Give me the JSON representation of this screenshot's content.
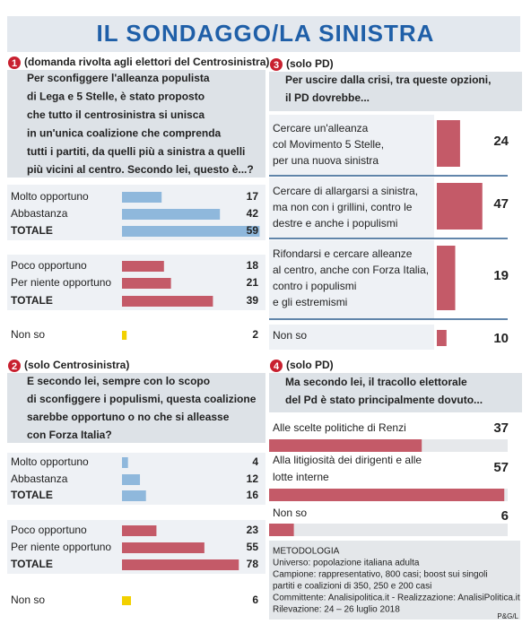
{
  "title": "IL SONDAGGO/LA SINISTRA",
  "chart_data": [
    {
      "type": "bar",
      "number": "1",
      "subtitle": "(domanda rivolta agli elettori del Centrosinistra)",
      "question": [
        "Per sconfiggere l'alleanza populista",
        "di Lega e 5 Stelle, è stato proposto",
        "che tutto il centrosinistra si unisca",
        "in un'unica coalizione che comprenda",
        "tutti i partiti, da quelli più a sinistra a quelli",
        "più vicini al centro. Secondo lei, questo è...?"
      ],
      "groups": [
        {
          "color": "#8fb8dc",
          "categories": [
            "Molto opportuno",
            "Abbastanza",
            "TOTALE"
          ],
          "values": [
            17,
            42,
            59
          ]
        },
        {
          "color": "#c45a68",
          "categories": [
            "Poco opportuno",
            "Per niente opportuno",
            "TOTALE"
          ],
          "values": [
            18,
            21,
            39
          ]
        },
        {
          "color": "#f2d000",
          "categories": [
            "Non so"
          ],
          "values": [
            2
          ]
        }
      ]
    },
    {
      "type": "bar",
      "number": "2",
      "subtitle": "(solo Centrosinistra)",
      "question": [
        "E secondo lei, sempre con lo scopo",
        "di sconfiggere i populismi, questa coalizione",
        "sarebbe opportuno o no che si alleasse",
        "con Forza Italia?"
      ],
      "groups": [
        {
          "color": "#8fb8dc",
          "categories": [
            "Molto opportuno",
            "Abbastanza",
            "TOTALE"
          ],
          "values": [
            4,
            12,
            16
          ]
        },
        {
          "color": "#c45a68",
          "categories": [
            "Poco opportuno",
            "Per niente opportuno",
            "TOTALE"
          ],
          "values": [
            23,
            55,
            78
          ]
        },
        {
          "color": "#f2d000",
          "categories": [
            "Non so"
          ],
          "values": [
            6
          ]
        }
      ]
    },
    {
      "type": "bar",
      "number": "3",
      "subtitle": "(solo PD)",
      "question": [
        "Per uscire dalla crisi, tra queste opzioni,",
        "il PD dovrebbe..."
      ],
      "color": "#c45a68",
      "categories": [
        [
          "Cercare un'alleanza",
          "col Movimento 5 Stelle,",
          "per una nuova sinistra"
        ],
        [
          "Cercare di allargarsi a sinistra,",
          "ma non con i grillini, contro le",
          "destre e anche i populismi"
        ],
        [
          "Rifondarsi e cercare alleanze",
          "al centro, anche con Forza Italia,",
          "contro i populismi",
          "e gli estremismi"
        ],
        [
          "Non so"
        ]
      ],
      "values": [
        24,
        47,
        19,
        10
      ]
    },
    {
      "type": "bar",
      "number": "4",
      "subtitle": "(solo PD)",
      "question": [
        "Ma secondo lei, il tracollo elettorale",
        "del Pd è stato principalmente dovuto..."
      ],
      "color": "#c45a68",
      "categories": [
        [
          "Alle scelte politiche di Renzi"
        ],
        [
          "Alla litigiosità dei dirigenti e alle",
          "lotte interne"
        ],
        [
          "Non so"
        ]
      ],
      "values": [
        37,
        57,
        6
      ]
    }
  ],
  "methodology": [
    "METODOLOGIA",
    "Universo: popolazione italiana adulta",
    "Campione: rappresentativo, 800 casi; boost sui singoli",
    "partiti e coalizioni di 350, 250 e 200 casi",
    "Committente: Analisipolitica.it - Realizzazione: AnalisiPolitica.it",
    "Rilevazione: 24 – 26 luglio 2018"
  ],
  "credit": "P&G/L"
}
